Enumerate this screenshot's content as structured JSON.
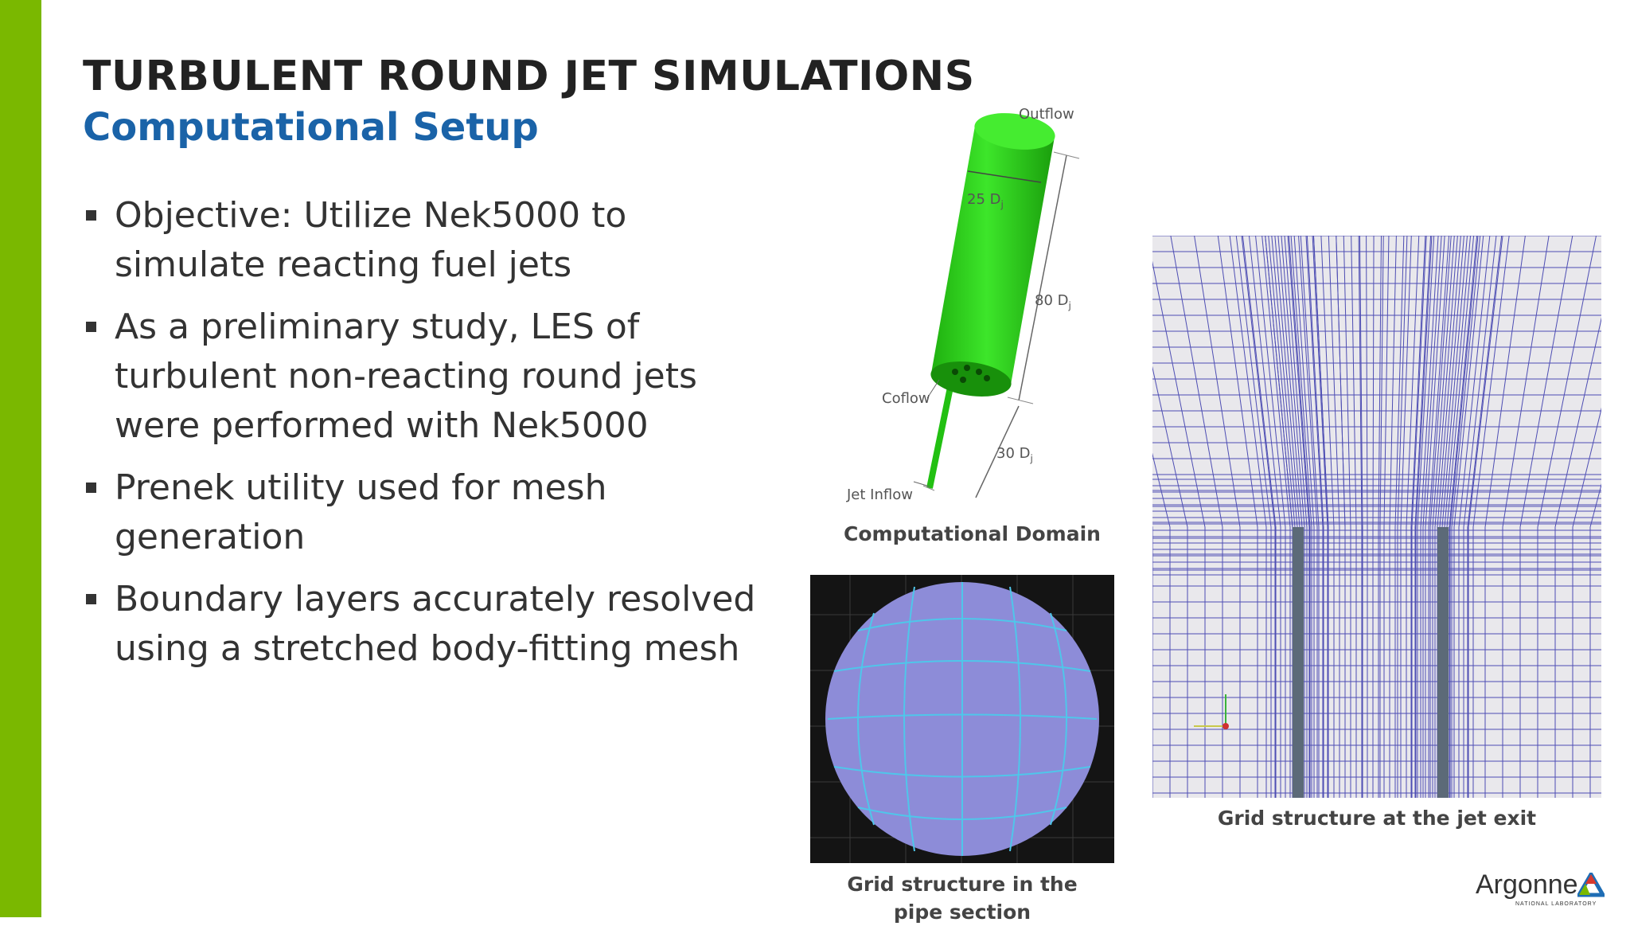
{
  "slide": {
    "title": "TURBULENT ROUND JET SIMULATIONS",
    "subtitle": "Computational Setup",
    "bullets": [
      "Objective: Utilize Nek5000 to simulate reacting fuel jets",
      "As a preliminary study, LES of turbulent non-reacting round jets were performed with Nek5000",
      "Prenek utility used for mesh generation",
      "Boundary layers accurately resolved using a stretched body-fitting mesh"
    ]
  },
  "domain_figure": {
    "outflow": "Outflow",
    "diameter": "25 D",
    "length_main": "80 D",
    "coflow": "Coflow",
    "length_pipe": "30 D",
    "jet_inflow": "Jet Inflow",
    "subscript": "j",
    "caption": "Computational Domain"
  },
  "pipe_figure": {
    "caption_line1": "Grid structure in the",
    "caption_line2": "pipe section"
  },
  "jet_exit_figure": {
    "caption": "Grid structure at the jet exit"
  },
  "logo": {
    "name": "Argonne",
    "tagline": "NATIONAL LABORATORY"
  },
  "colors": {
    "accent_green": "#7ab800",
    "subtitle_blue": "#1a63a8",
    "cylinder_green": "#2ed41f",
    "mesh_blue": "#1a1aa0"
  }
}
